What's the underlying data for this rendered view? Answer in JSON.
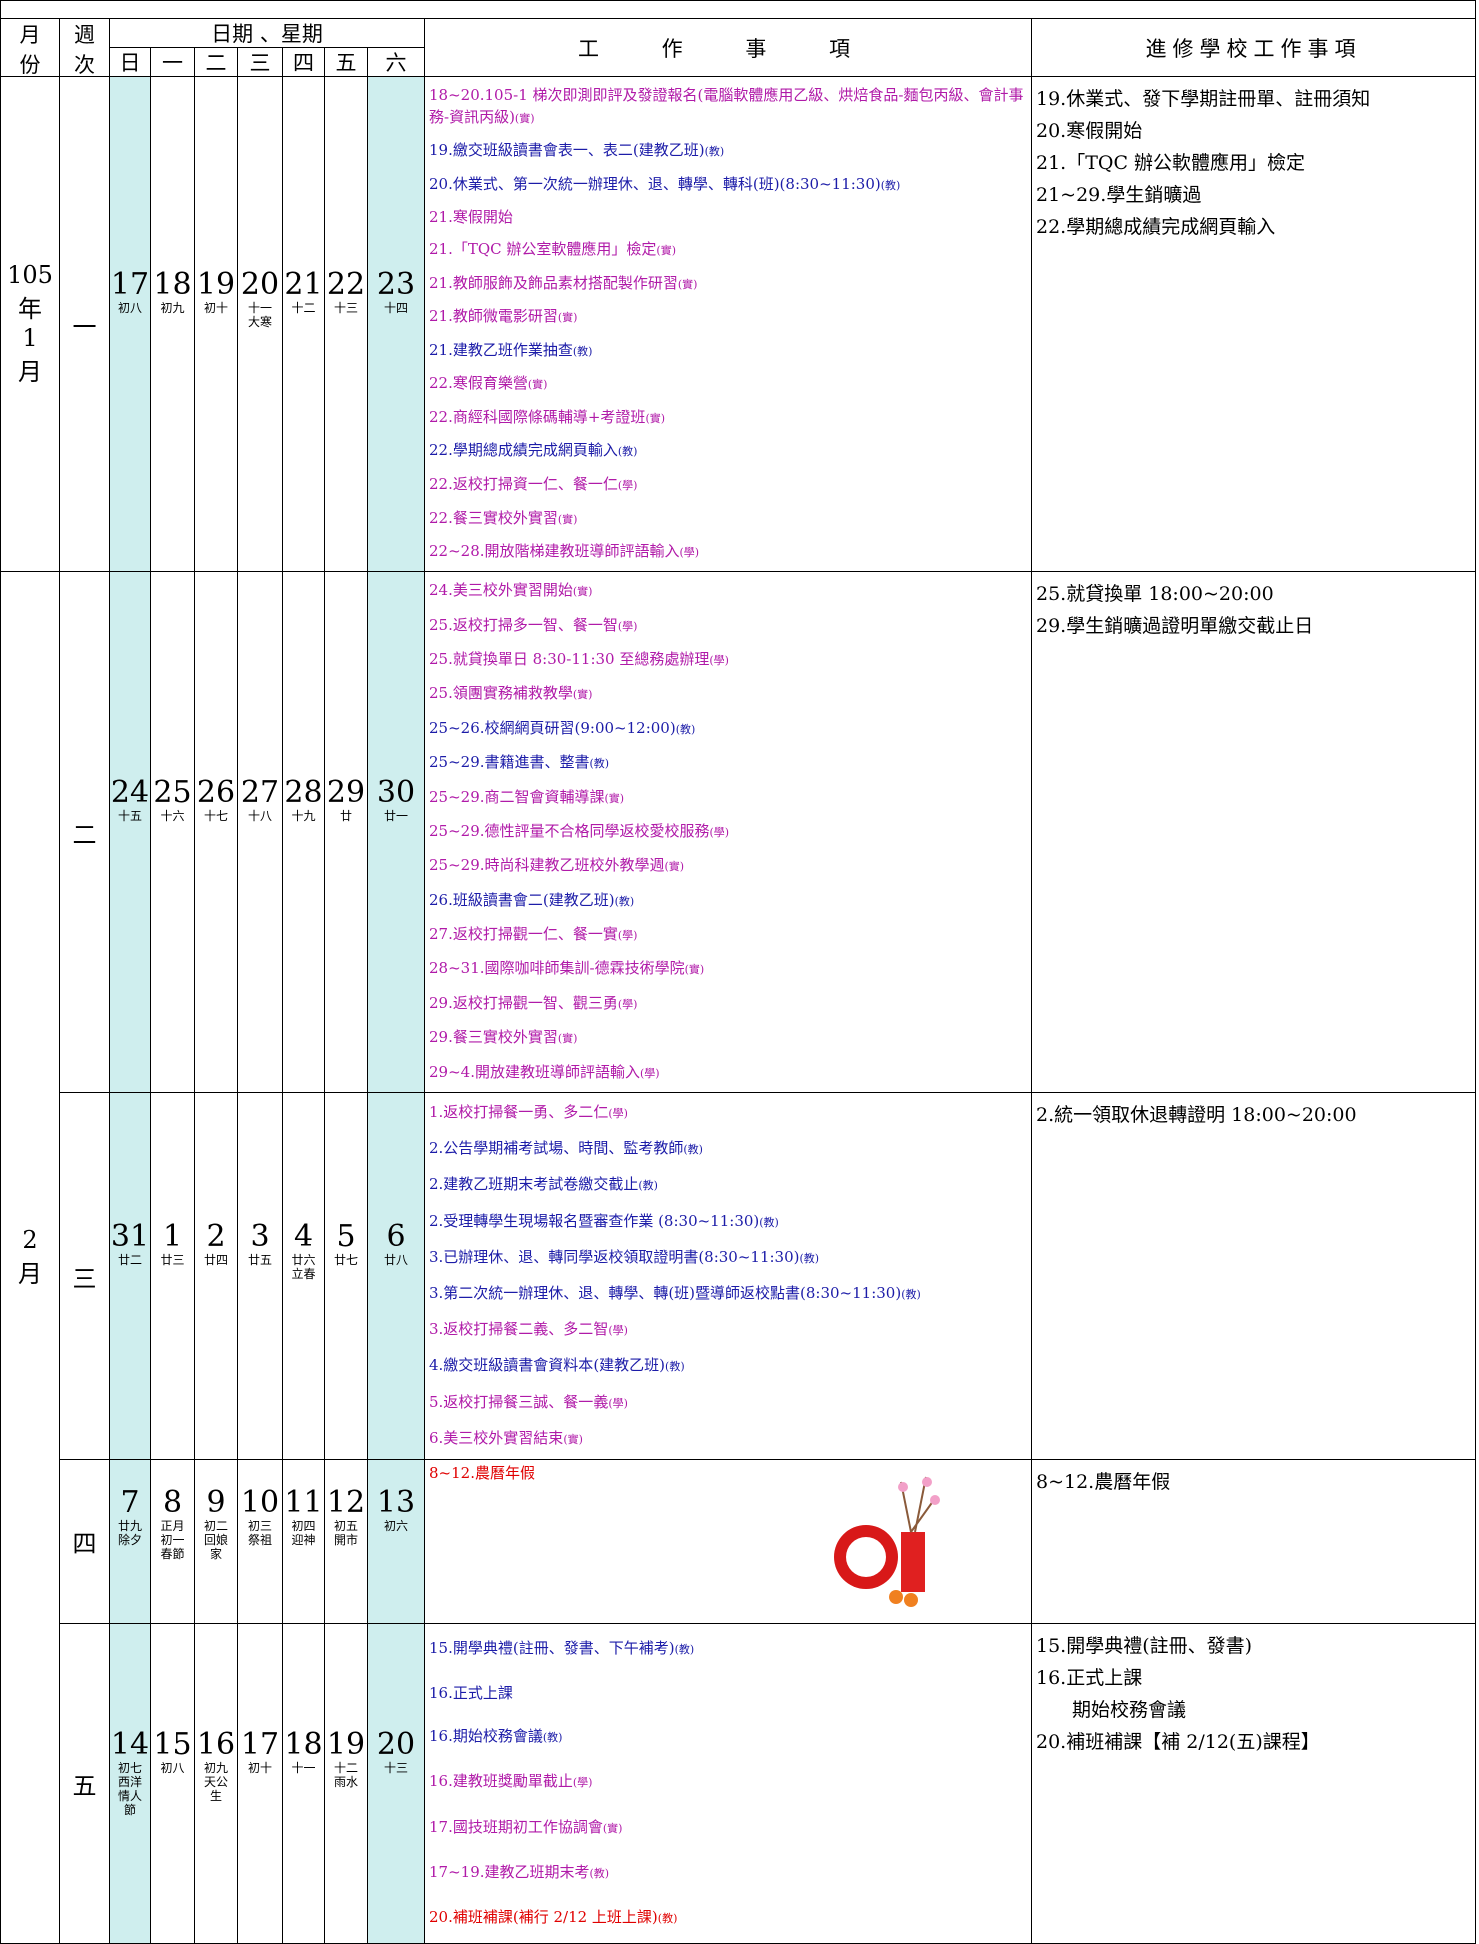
{
  "header": {
    "month": [
      "月",
      "份"
    ],
    "week": [
      "週",
      "次"
    ],
    "days_title": "日期 、星期",
    "weekdays": [
      "日",
      "一",
      "二",
      "三",
      "四",
      "五",
      "六"
    ],
    "work": "工 作 事 項",
    "school": "進修學校工作事項"
  },
  "months": [
    {
      "label": [
        "105",
        "年",
        "1",
        "月"
      ]
    },
    {
      "label": [
        "2",
        "月"
      ]
    }
  ],
  "weeks": [
    {
      "week": "一",
      "days": [
        {
          "date": "17",
          "lunar": [
            "初八"
          ]
        },
        {
          "date": "18",
          "lunar": [
            "初九"
          ]
        },
        {
          "date": "19",
          "lunar": [
            "初十"
          ]
        },
        {
          "date": "20",
          "lunar": [
            "十一",
            "大寒"
          ]
        },
        {
          "date": "21",
          "lunar": [
            "十二"
          ]
        },
        {
          "date": "22",
          "lunar": [
            "十三"
          ]
        },
        {
          "date": "23",
          "lunar": [
            "十四"
          ]
        }
      ],
      "work": [
        {
          "text": "18~20.105-1 梯次即測即評及發證報名(電腦軟體應用乙級、烘焙食品-麵包丙級、會計事務-資訊丙級)",
          "tag": "(實)",
          "color": "#b01aa8"
        },
        {
          "text": "19.繳交班級讀書會表一、表二(建教乙班)",
          "tag": "(教)",
          "color": "#1c1ca8"
        },
        {
          "text": "20.休業式、第一次統一辦理休、退、轉學、轉科(班)(8:30~11:30)",
          "tag": "(教)",
          "color": "#1c1ca8"
        },
        {
          "text": "21.寒假開始",
          "color": "#b01aa8"
        },
        {
          "text": "21.「TQC 辦公室軟體應用」檢定",
          "tag": "(實)",
          "color": "#b01aa8"
        },
        {
          "text": "21.教師服飾及飾品素材搭配製作研習",
          "tag": "(實)",
          "color": "#b01aa8"
        },
        {
          "text": "21.教師微電影研習",
          "tag": "(實)",
          "color": "#b01aa8"
        },
        {
          "text": "21.建教乙班作業抽查",
          "tag": "(教)",
          "color": "#1c1ca8"
        },
        {
          "text": "22.寒假育樂營",
          "tag": "(實)",
          "color": "#b01aa8"
        },
        {
          "text": "22.商經科國際條碼輔導+考證班",
          "tag": "(實)",
          "color": "#b01aa8"
        },
        {
          "text": "22.學期總成績完成網頁輸入",
          "tag": "(教)",
          "color": "#1c1ca8"
        },
        {
          "text": "22.返校打掃資一仁、餐一仁",
          "tag": "(學)",
          "color": "#b01aa8"
        },
        {
          "text": "22.餐三實校外實習",
          "tag": "(實)",
          "color": "#b01aa8"
        },
        {
          "text": "22~28.開放階梯建教班導師評語輸入",
          "tag": "(學)",
          "color": "#b01aa8"
        }
      ],
      "school": [
        "19.休業式、發下學期註冊單、註冊須知",
        "20.寒假開始",
        "21.「TQC 辦公軟體應用」檢定",
        "21~29.學生銷曠過",
        "22.學期總成績完成網頁輸入"
      ]
    },
    {
      "week": "二",
      "days": [
        {
          "date": "24",
          "lunar": [
            "十五"
          ]
        },
        {
          "date": "25",
          "lunar": [
            "十六"
          ]
        },
        {
          "date": "26",
          "lunar": [
            "十七"
          ]
        },
        {
          "date": "27",
          "lunar": [
            "十八"
          ]
        },
        {
          "date": "28",
          "lunar": [
            "十九"
          ]
        },
        {
          "date": "29",
          "lunar": [
            "廿"
          ]
        },
        {
          "date": "30",
          "lunar": [
            "廿一"
          ]
        }
      ],
      "work": [
        {
          "text": "24.美三校外實習開始",
          "tag": "(實)",
          "color": "#b01aa8"
        },
        {
          "text": "25.返校打掃多一智、餐一智",
          "tag": "(學)",
          "color": "#b01aa8"
        },
        {
          "text": "25.就貸換單日 8:30-11:30 至總務處辦理",
          "tag": "(學)",
          "color": "#b01aa8"
        },
        {
          "text": "25.領團實務補救教學",
          "tag": "(實)",
          "color": "#b01aa8"
        },
        {
          "text": "25~26.校網網頁研習(9:00~12:00)",
          "tag": "(教)",
          "color": "#1c1ca8"
        },
        {
          "text": "25~29.書籍進書、整書",
          "tag": "(教)",
          "color": "#1c1ca8"
        },
        {
          "text": "25~29.商二智會資輔導課",
          "tag": "(實)",
          "color": "#b01aa8"
        },
        {
          "text": "25~29.德性評量不合格同學返校愛校服務",
          "tag": "(學)",
          "color": "#b01aa8"
        },
        {
          "text": "25~29.時尚科建教乙班校外教學週",
          "tag": "(實)",
          "color": "#b01aa8"
        },
        {
          "text": "26.班級讀書會二(建教乙班)",
          "tag": "(教)",
          "color": "#1c1ca8"
        },
        {
          "text": "27.返校打掃觀一仁、餐一實",
          "tag": "(學)",
          "color": "#b01aa8"
        },
        {
          "text": "28~31.國際咖啡師集訓-德霖技術學院",
          "tag": "(實)",
          "color": "#b01aa8"
        },
        {
          "text": "29.返校打掃觀一智、觀三勇",
          "tag": "(學)",
          "color": "#b01aa8"
        },
        {
          "text": "29.餐三實校外實習",
          "tag": "(實)",
          "color": "#b01aa8"
        },
        {
          "text": "29~4.開放建教班導師評語輸入",
          "tag": "(學)",
          "color": "#b01aa8"
        }
      ],
      "school": [
        "25.就貸換單 18:00~20:00",
        "29.學生銷曠過證明單繳交截止日"
      ]
    },
    {
      "week": "三",
      "days": [
        {
          "date": "31",
          "lunar": [
            "廿二"
          ]
        },
        {
          "date": "1",
          "lunar": [
            "廿三"
          ]
        },
        {
          "date": "2",
          "lunar": [
            "廿四"
          ]
        },
        {
          "date": "3",
          "lunar": [
            "廿五"
          ]
        },
        {
          "date": "4",
          "lunar": [
            "廿六",
            "立春"
          ]
        },
        {
          "date": "5",
          "lunar": [
            "廿七"
          ]
        },
        {
          "date": "6",
          "lunar": [
            "廿八"
          ]
        }
      ],
      "work": [
        {
          "text": "1.返校打掃餐一勇、多二仁",
          "tag": "(學)",
          "color": "#b01aa8"
        },
        {
          "text": "2.公告學期補考試場、時間、監考教師",
          "tag": "(教)",
          "color": "#1c1ca8"
        },
        {
          "text": "2.建教乙班期末考試卷繳交截止",
          "tag": "(教)",
          "color": "#1c1ca8"
        },
        {
          "text": "2.受理轉學生現場報名暨審查作業 (8:30~11:30)",
          "tag": "(教)",
          "color": "#1c1ca8"
        },
        {
          "text": "3.已辦理休、退、轉同學返校領取證明書(8:30~11:30)",
          "tag": "(教)",
          "color": "#1c1ca8"
        },
        {
          "text": "3.第二次統一辦理休、退、轉學、轉(班)暨導師返校點書(8:30~11:30)",
          "tag": "(教)",
          "color": "#1c1ca8"
        },
        {
          "text": "3.返校打掃餐二義、多二智",
          "tag": "(學)",
          "color": "#b01aa8"
        },
        {
          "text": "4.繳交班級讀書會資料本(建教乙班)",
          "tag": "(教)",
          "color": "#1c1ca8"
        },
        {
          "text": "5.返校打掃餐三誠、餐一義",
          "tag": "(學)",
          "color": "#b01aa8"
        },
        {
          "text": "6.美三校外實習結束",
          "tag": "(實)",
          "color": "#b01aa8"
        }
      ],
      "school": [
        "2.統一領取休退轉證明 18:00~20:00"
      ]
    },
    {
      "week": "四",
      "days": [
        {
          "date": "7",
          "lunar": [
            "廿九",
            "除夕"
          ]
        },
        {
          "date": "8",
          "lunar": [
            "正月",
            "初一",
            "春節"
          ]
        },
        {
          "date": "9",
          "lunar": [
            "初二",
            "回娘",
            "家"
          ]
        },
        {
          "date": "10",
          "lunar": [
            "初三",
            "祭祖"
          ]
        },
        {
          "date": "11",
          "lunar": [
            "初四",
            "迎神"
          ]
        },
        {
          "date": "12",
          "lunar": [
            "初五",
            "開市"
          ]
        },
        {
          "date": "13",
          "lunar": [
            "初六"
          ]
        }
      ],
      "work": [
        {
          "text": "8~12.農曆年假",
          "color": "#e00000"
        }
      ],
      "school": [
        "8~12.農曆年假"
      ]
    },
    {
      "week": "五",
      "days": [
        {
          "date": "14",
          "lunar": [
            "初七",
            "西洋",
            "情人",
            "節"
          ]
        },
        {
          "date": "15",
          "lunar": [
            "初八"
          ]
        },
        {
          "date": "16",
          "lunar": [
            "初九",
            "天公",
            "生"
          ]
        },
        {
          "date": "17",
          "lunar": [
            "初十"
          ]
        },
        {
          "date": "18",
          "lunar": [
            "十一"
          ]
        },
        {
          "date": "19",
          "lunar": [
            "十二",
            "雨水"
          ]
        },
        {
          "date": "20",
          "lunar": [
            "十三"
          ]
        }
      ],
      "work": [
        {
          "text": "15.開學典禮(註冊、發書、下午補考)",
          "tag": "(教)",
          "color": "#1c1ca8"
        },
        {
          "text": "16.正式上課",
          "color": "#1c1ca8"
        },
        {
          "text": "16.期始校務會議",
          "tag": "(教)",
          "color": "#1c1ca8"
        },
        {
          "text": "16.建教班獎勵單截止",
          "tag": "(學)",
          "color": "#b01aa8"
        },
        {
          "text": "17.國技班期初工作協調會",
          "tag": "(實)",
          "color": "#b01aa8"
        },
        {
          "text": "17~19.建教乙班期末考",
          "tag": "(教)",
          "color": "#b01aa8"
        },
        {
          "text": "20.補班補課(補行 2/12 上班上課)",
          "tag": "(教)",
          "color": "#e00000"
        }
      ],
      "school": [
        "15.開學典禮(註冊、發書)",
        "16.正式上課",
        "期始校務會議",
        "20.補班補課【補 2/12(五)課程】"
      ]
    }
  ]
}
